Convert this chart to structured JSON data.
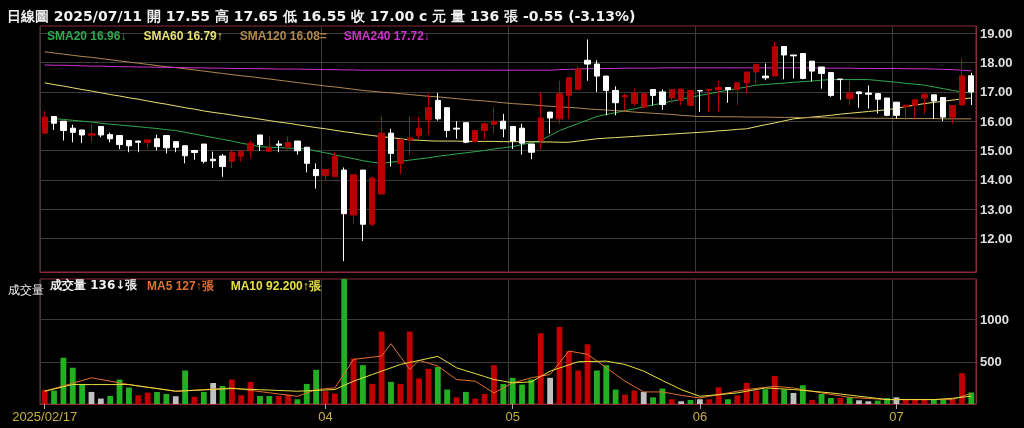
{
  "chart_data": [
    {
      "type": "candlestick",
      "title": "日線圖 2025/07/11 開 17.55 高 17.65 低 16.55 收 17.00 c 元 量 136 張 -0.55 (-3.13%)",
      "categories": [
        "2025/02/17",
        null,
        null,
        null,
        null,
        null,
        null,
        null,
        null,
        null,
        null,
        null,
        null,
        null,
        null,
        null,
        null,
        null,
        null,
        null,
        null,
        null,
        null,
        null,
        null,
        null,
        null,
        null,
        null,
        null,
        "04",
        null,
        null,
        null,
        null,
        null,
        null,
        null,
        null,
        null,
        null,
        null,
        null,
        null,
        null,
        null,
        null,
        null,
        null,
        null,
        "05",
        null,
        null,
        null,
        null,
        null,
        null,
        null,
        null,
        null,
        null,
        null,
        null,
        null,
        null,
        null,
        null,
        null,
        null,
        null,
        "06",
        null,
        null,
        null,
        null,
        null,
        null,
        null,
        null,
        null,
        null,
        null,
        null,
        null,
        null,
        null,
        null,
        null,
        null,
        null,
        null,
        "07",
        null,
        null,
        null,
        null,
        null,
        null,
        null,
        null
      ],
      "ylim": [
        10.85,
        19.25
      ],
      "yticks": [
        {
          "value": 12,
          "label": "12.00"
        },
        {
          "value": 13,
          "label": "13.00"
        },
        {
          "value": 14,
          "label": "14.00"
        },
        {
          "value": 15,
          "label": "15.00"
        },
        {
          "value": 16,
          "label": "16.00"
        },
        {
          "value": 17,
          "label": "17.00"
        },
        {
          "value": 18,
          "label": "18.00"
        },
        {
          "value": 19,
          "label": "19.00"
        }
      ],
      "grid": true,
      "legend": "top left",
      "tick_labels": "y",
      "marker": "none",
      "line_style": "solid",
      "series": [
        {
          "ohlc": [
            [
              15.59,
              16.35,
              15.57,
              16.14
            ],
            [
              16.16,
              16.16,
              15.7,
              15.93
            ],
            [
              16.0,
              16.0,
              15.34,
              15.68
            ],
            [
              15.76,
              15.88,
              15.28,
              15.62
            ],
            [
              15.7,
              15.7,
              15.25,
              15.53
            ],
            [
              15.52,
              15.91,
              15.28,
              15.57
            ],
            [
              15.82,
              15.82,
              15.45,
              15.53
            ],
            [
              15.54,
              15.61,
              15.28,
              15.4
            ],
            [
              15.51,
              15.51,
              15.04,
              15.2
            ],
            [
              15.34,
              15.34,
              14.94,
              15.16
            ],
            [
              15.32,
              15.34,
              14.94,
              15.28
            ],
            [
              15.27,
              15.38,
              15.05,
              15.36
            ],
            [
              15.4,
              15.54,
              15.0,
              15.13
            ],
            [
              15.51,
              15.51,
              14.9,
              15.09
            ],
            [
              15.3,
              15.3,
              14.94,
              15.11
            ],
            [
              15.16,
              15.16,
              14.56,
              14.82
            ],
            [
              15.0,
              15.02,
              14.68,
              14.93
            ],
            [
              15.22,
              15.22,
              14.56,
              14.63
            ],
            [
              14.7,
              14.96,
              14.4,
              14.65
            ],
            [
              14.81,
              14.88,
              14.1,
              14.45
            ],
            [
              14.63,
              15.02,
              14.39,
              14.94
            ],
            [
              14.8,
              14.97,
              14.62,
              14.97
            ],
            [
              14.99,
              15.34,
              14.74,
              15.25
            ],
            [
              15.53,
              15.53,
              14.99,
              15.2
            ],
            [
              14.97,
              15.48,
              14.94,
              15.09
            ],
            [
              15.22,
              15.34,
              14.94,
              15.18
            ],
            [
              15.11,
              15.48,
              15.02,
              15.27
            ],
            [
              15.32,
              15.32,
              14.86,
              14.99
            ],
            [
              15.11,
              15.11,
              14.25,
              14.56
            ],
            [
              14.35,
              14.56,
              13.7,
              14.14
            ],
            [
              14.14,
              14.35,
              13.97,
              14.35
            ],
            [
              14.1,
              14.94,
              14.1,
              14.79
            ],
            [
              14.33,
              14.42,
              11.22,
              12.84
            ],
            [
              12.8,
              14.17,
              12.5,
              14.17
            ],
            [
              14.33,
              14.33,
              11.91,
              12.48
            ],
            [
              12.48,
              14.1,
              12.4,
              14.06
            ],
            [
              13.51,
              16.16,
              13.51,
              15.59
            ],
            [
              15.59,
              15.74,
              14.45,
              14.9
            ],
            [
              14.56,
              15.38,
              14.19,
              15.38
            ],
            [
              15.36,
              16.16,
              14.86,
              15.43
            ],
            [
              15.51,
              16.14,
              15.4,
              15.76
            ],
            [
              16.05,
              16.94,
              15.54,
              16.46
            ],
            [
              16.71,
              16.96,
              16.02,
              16.08
            ],
            [
              16.46,
              16.46,
              15.45,
              15.68
            ],
            [
              15.76,
              16.0,
              15.4,
              15.73
            ],
            [
              15.95,
              15.95,
              15.25,
              15.28
            ],
            [
              15.31,
              15.7,
              15.28,
              15.68
            ],
            [
              15.68,
              15.96,
              15.4,
              15.91
            ],
            [
              15.89,
              16.48,
              15.57,
              16.0
            ],
            [
              16.0,
              16.25,
              15.45,
              15.74
            ],
            [
              15.82,
              15.82,
              15.05,
              15.32
            ],
            [
              15.76,
              15.91,
              14.86,
              15.25
            ],
            [
              15.22,
              15.22,
              14.7,
              14.94
            ],
            [
              15.34,
              16.96,
              15.02,
              16.11
            ],
            [
              16.31,
              16.31,
              15.57,
              16.11
            ],
            [
              16.08,
              17.38,
              15.91,
              16.94
            ],
            [
              16.88,
              17.49,
              16.08,
              17.49
            ],
            [
              17.08,
              17.88,
              17.08,
              17.78
            ],
            [
              18.08,
              18.79,
              17.38,
              17.95
            ],
            [
              17.95,
              18.08,
              17.0,
              17.54
            ],
            [
              17.54,
              17.54,
              16.2,
              17.05
            ],
            [
              17.05,
              17.19,
              16.2,
              16.63
            ],
            [
              16.83,
              16.94,
              16.37,
              16.88
            ],
            [
              16.6,
              17.11,
              16.51,
              16.96
            ],
            [
              16.48,
              16.94,
              16.43,
              16.94
            ],
            [
              17.08,
              17.08,
              16.54,
              16.88
            ],
            [
              17.0,
              17.08,
              16.39,
              16.57
            ],
            [
              16.8,
              17.08,
              16.62,
              17.08
            ],
            [
              16.71,
              17.1,
              16.54,
              17.1
            ],
            [
              16.54,
              17.05,
              16.51,
              17.05
            ],
            [
              17.05,
              17.05,
              16.32,
              17.03
            ],
            [
              17.05,
              17.09,
              16.32,
              17.09
            ],
            [
              17.08,
              17.38,
              16.32,
              17.15
            ],
            [
              17.15,
              17.15,
              16.63,
              17.08
            ],
            [
              17.08,
              17.31,
              16.54,
              17.31
            ],
            [
              17.31,
              17.68,
              16.94,
              17.68
            ],
            [
              17.68,
              17.94,
              17.25,
              17.94
            ],
            [
              17.54,
              17.97,
              17.4,
              17.48
            ],
            [
              17.54,
              18.69,
              17.54,
              18.54
            ],
            [
              18.55,
              18.55,
              17.43,
              18.26
            ],
            [
              18.26,
              18.26,
              17.46,
              18.23
            ],
            [
              18.31,
              18.31,
              17.43,
              17.46
            ],
            [
              18.05,
              18.05,
              17.36,
              17.71
            ],
            [
              17.85,
              17.85,
              17.11,
              17.63
            ],
            [
              17.66,
              17.66,
              16.83,
              16.88
            ],
            [
              17.44,
              17.44,
              16.73,
              17.42
            ],
            [
              16.77,
              17.38,
              16.54,
              16.96
            ],
            [
              17.0,
              17.0,
              16.46,
              16.94
            ],
            [
              16.96,
              17.22,
              16.43,
              16.92
            ],
            [
              16.94,
              16.94,
              16.26,
              16.75
            ],
            [
              16.79,
              16.79,
              16.17,
              16.2
            ],
            [
              16.65,
              16.65,
              16.08,
              16.2
            ],
            [
              16.49,
              16.54,
              16.03,
              16.54
            ],
            [
              16.54,
              16.73,
              16.08,
              16.73
            ],
            [
              16.79,
              16.99,
              16.25,
              16.92
            ],
            [
              16.9,
              16.9,
              16.08,
              16.69
            ],
            [
              16.81,
              16.81,
              16.0,
              16.14
            ],
            [
              16.14,
              16.54,
              15.91,
              16.54
            ],
            [
              16.55,
              18.15,
              16.55,
              17.55
            ],
            [
              17.55,
              17.65,
              16.55,
              17.0
            ]
          ],
          "colors": [
            "#b40000",
            "#ffffff",
            "#ffffff",
            "#ffffff",
            "#ffffff",
            "#b40000",
            "#ffffff",
            "#ffffff",
            "#ffffff",
            "#ffffff",
            "#ffffff",
            "#b40000",
            "#ffffff",
            "#ffffff",
            "#ffffff",
            "#ffffff",
            "#ffffff",
            "#ffffff",
            "#ffffff",
            "#ffffff",
            "#b40000",
            "#b40000",
            "#b40000",
            "#ffffff",
            "#b40000",
            "#ffffff",
            "#b40000",
            "#ffffff",
            "#ffffff",
            "#ffffff",
            "#b40000",
            "#b40000",
            "#ffffff",
            "#b40000",
            "#ffffff",
            "#b40000",
            "#b40000",
            "#ffffff",
            "#b40000",
            "#b40000",
            "#b40000",
            "#b40000",
            "#ffffff",
            "#ffffff",
            "#ffffff",
            "#ffffff",
            "#b40000",
            "#b40000",
            "#b40000",
            "#ffffff",
            "#ffffff",
            "#ffffff",
            "#ffffff",
            "#b40000",
            "#ffffff",
            "#b40000",
            "#b40000",
            "#b40000",
            "#ffffff",
            "#ffffff",
            "#ffffff",
            "#ffffff",
            "#b40000",
            "#b40000",
            "#b40000",
            "#ffffff",
            "#ffffff",
            "#b40000",
            "#b40000",
            "#b40000",
            "#ffffff",
            "#b40000",
            "#b40000",
            "#ffffff",
            "#b40000",
            "#b40000",
            "#b40000",
            "#ffffff",
            "#b40000",
            "#ffffff",
            "#ffffff",
            "#ffffff",
            "#ffffff",
            "#ffffff",
            "#ffffff",
            "#ffffff",
            "#b40000",
            "#ffffff",
            "#ffffff",
            "#ffffff",
            "#ffffff",
            "#ffffff",
            "#b40000",
            "#b40000",
            "#b40000",
            "#ffffff",
            "#ffffff",
            "#b40000",
            "#b40000",
            "#ffffff"
          ]
        },
        {
          "type": "line",
          "name": "SMA20 16.96↓",
          "color": "#2fa84f",
          "values": [
            null,
            16.09,
            16.06,
            16.03,
            16.0,
            15.97,
            15.93,
            15.9,
            15.87,
            15.84,
            15.81,
            15.78,
            15.75,
            15.71,
            15.68,
            15.62,
            15.56,
            15.5,
            15.44,
            15.38,
            15.32,
            15.25,
            15.19,
            15.13,
            15.11,
            15.1,
            15.08,
            15.07,
            15.05,
            14.98,
            14.92,
            14.85,
            14.78,
            14.72,
            14.65,
            14.6,
            14.56,
            14.6,
            14.63,
            14.67,
            14.71,
            14.75,
            14.8,
            14.84,
            14.88,
            14.92,
            14.96,
            15.0,
            15.05,
            15.09,
            15.13,
            15.2,
            15.27,
            15.34,
            15.51,
            15.68,
            15.8,
            15.92,
            16.04,
            16.16,
            16.23,
            16.29,
            16.36,
            16.42,
            16.49,
            16.55,
            16.62,
            16.68,
            16.75,
            16.81,
            16.88,
            16.94,
            17.0,
            17.06,
            17.11,
            17.17,
            17.23,
            17.25,
            17.28,
            17.3,
            17.33,
            17.35,
            17.37,
            17.4,
            17.42,
            17.42,
            17.42,
            17.42,
            17.42,
            17.39,
            17.36,
            17.33,
            17.29,
            17.26,
            17.23,
            17.17,
            17.11,
            17.05,
            17.0,
            16.96
          ]
        },
        {
          "type": "line",
          "name": "SMA60 16.79↑",
          "color": "#e8e070",
          "values": [
            17.31,
            17.25,
            17.2,
            17.14,
            17.08,
            17.03,
            16.97,
            16.91,
            16.86,
            16.8,
            16.75,
            16.69,
            16.63,
            16.58,
            16.52,
            16.46,
            16.41,
            16.35,
            16.3,
            16.26,
            16.21,
            16.16,
            16.12,
            16.07,
            16.02,
            15.97,
            15.93,
            15.88,
            15.83,
            15.78,
            15.74,
            15.69,
            15.64,
            15.6,
            15.55,
            15.51,
            15.47,
            15.44,
            15.4,
            15.36,
            15.35,
            15.33,
            15.32,
            15.32,
            15.32,
            15.31,
            15.31,
            15.31,
            15.31,
            15.3,
            15.3,
            15.3,
            15.3,
            15.29,
            15.29,
            15.28,
            15.28,
            15.32,
            15.36,
            15.4,
            15.42,
            15.44,
            15.46,
            15.48,
            15.5,
            15.52,
            15.54,
            15.56,
            15.58,
            15.6,
            15.62,
            15.64,
            15.67,
            15.69,
            15.72,
            15.74,
            15.81,
            15.88,
            15.94,
            16.01,
            16.08,
            16.11,
            16.14,
            16.17,
            16.2,
            16.24,
            16.27,
            16.3,
            16.33,
            16.36,
            16.39,
            16.44,
            16.5,
            16.55,
            16.6,
            16.64,
            16.68,
            16.72,
            16.76,
            16.79
          ]
        },
        {
          "type": "line",
          "name": "SMA120 16.08=",
          "color": "#b08850",
          "values": [
            18.37,
            18.33,
            18.29,
            18.25,
            18.21,
            18.18,
            18.14,
            18.1,
            18.06,
            18.02,
            17.98,
            17.94,
            17.9,
            17.86,
            17.83,
            17.79,
            17.75,
            17.71,
            17.67,
            17.63,
            17.59,
            17.55,
            17.52,
            17.48,
            17.44,
            17.4,
            17.36,
            17.32,
            17.28,
            17.24,
            17.2,
            17.17,
            17.13,
            17.09,
            17.05,
            17.02,
            16.99,
            16.97,
            16.94,
            16.91,
            16.88,
            16.85,
            16.83,
            16.8,
            16.77,
            16.74,
            16.71,
            16.69,
            16.66,
            16.63,
            16.6,
            16.58,
            16.56,
            16.53,
            16.51,
            16.49,
            16.47,
            16.45,
            16.42,
            16.4,
            16.38,
            16.36,
            16.34,
            16.31,
            16.29,
            16.27,
            16.25,
            16.23,
            16.2,
            16.18,
            16.16,
            16.16,
            16.15,
            16.15,
            16.15,
            16.14,
            16.14,
            16.14,
            16.13,
            16.13,
            16.13,
            16.12,
            16.12,
            16.12,
            16.11,
            16.11,
            16.11,
            16.1,
            16.1,
            16.1,
            16.1,
            16.09,
            16.09,
            16.09,
            16.09,
            16.09,
            16.08,
            16.08,
            16.08,
            16.08
          ]
        },
        {
          "type": "line",
          "name": "SMA240 17.72↓",
          "color": "#cc33cc",
          "values": [
            17.92,
            17.91,
            17.91,
            17.9,
            17.89,
            17.88,
            17.88,
            17.87,
            17.86,
            17.86,
            17.85,
            17.85,
            17.84,
            17.84,
            17.83,
            17.83,
            17.82,
            17.82,
            17.81,
            17.81,
            17.8,
            17.8,
            17.8,
            17.79,
            17.79,
            17.78,
            17.78,
            17.78,
            17.77,
            17.77,
            17.76,
            17.76,
            17.75,
            17.75,
            17.74,
            17.74,
            17.74,
            17.74,
            17.74,
            17.74,
            17.74,
            17.74,
            17.74,
            17.74,
            17.74,
            17.74,
            17.74,
            17.74,
            17.74,
            17.74,
            17.74,
            17.74,
            17.74,
            17.74,
            17.74,
            17.76,
            17.77,
            17.78,
            17.79,
            17.8,
            17.8,
            17.8,
            17.81,
            17.81,
            17.81,
            17.81,
            17.82,
            17.82,
            17.82,
            17.82,
            17.82,
            17.82,
            17.82,
            17.82,
            17.82,
            17.82,
            17.82,
            17.82,
            17.82,
            17.82,
            17.82,
            17.82,
            17.82,
            17.81,
            17.81,
            17.81,
            17.81,
            17.8,
            17.8,
            17.8,
            17.8,
            17.8,
            17.79,
            17.79,
            17.79,
            17.78,
            17.77,
            17.76,
            17.74,
            17.72
          ]
        }
      ]
    },
    {
      "type": "bar",
      "title": "成交量",
      "annotations": [
        "成交量 136↓張"
      ],
      "categories": [
        "2025/02/17",
        null,
        null,
        null,
        null,
        null,
        null,
        null,
        null,
        null,
        null,
        null,
        null,
        null,
        null,
        null,
        null,
        null,
        null,
        null,
        null,
        null,
        null,
        null,
        null,
        null,
        null,
        null,
        null,
        null,
        "04",
        null,
        null,
        null,
        null,
        null,
        null,
        null,
        null,
        null,
        null,
        null,
        null,
        null,
        null,
        null,
        null,
        null,
        null,
        null,
        "05",
        null,
        null,
        null,
        null,
        null,
        null,
        null,
        null,
        null,
        null,
        null,
        null,
        null,
        null,
        null,
        null,
        null,
        null,
        null,
        "06",
        null,
        null,
        null,
        null,
        null,
        null,
        null,
        null,
        null,
        null,
        null,
        null,
        null,
        null,
        null,
        null,
        null,
        null,
        null,
        null,
        "07",
        null,
        null,
        null,
        null,
        null,
        null,
        null,
        null
      ],
      "ylim": [
        0,
        1480
      ],
      "yticks": [
        500,
        1000
      ],
      "grid": true,
      "legend": "top left",
      "marker": "none",
      "line_style": "solid",
      "series": [
        {
          "values": [
            167,
            159,
            548,
            429,
            238,
            143,
            64,
            95,
            290,
            195,
            103,
            135,
            143,
            119,
            91,
            397,
            87,
            143,
            250,
            214,
            290,
            103,
            262,
            95,
            95,
            95,
            111,
            56,
            238,
            405,
            151,
            123,
            1480,
            540,
            460,
            238,
            858,
            262,
            238,
            858,
            302,
            417,
            437,
            171,
            79,
            143,
            64,
            119,
            460,
            238,
            310,
            230,
            290,
            838,
            310,
            913,
            627,
            397,
            707,
            397,
            460,
            171,
            111,
            159,
            143,
            79,
            183,
            56,
            32,
            48,
            56,
            56,
            198,
            56,
            103,
            250,
            159,
            175,
            333,
            171,
            131,
            222,
            48,
            119,
            71,
            71,
            79,
            44,
            32,
            40,
            71,
            79,
            60,
            60,
            60,
            56,
            56,
            52,
            365,
            136
          ],
          "colors": [
            "#c00000",
            "#22b022",
            "#22b022",
            "#22b022",
            "#22b022",
            "#c0c0c0",
            "#c0c0c0",
            "#22b022",
            "#22b022",
            "#22b022",
            "#c00000",
            "#c00000",
            "#22b022",
            "#22b022",
            "#c0c0c0",
            "#22b022",
            "#c00000",
            "#22b022",
            "#c0c0c0",
            "#22b022",
            "#c00000",
            "#c00000",
            "#c00000",
            "#22b022",
            "#22b022",
            "#c00000",
            "#c00000",
            "#22b022",
            "#22b022",
            "#22b022",
            "#c00000",
            "#c00000",
            "#22b022",
            "#c00000",
            "#22b022",
            "#c00000",
            "#c00000",
            "#22b022",
            "#c00000",
            "#c00000",
            "#c00000",
            "#c00000",
            "#22b022",
            "#22b022",
            "#c00000",
            "#22b022",
            "#c00000",
            "#c00000",
            "#c00000",
            "#22b022",
            "#22b022",
            "#22b022",
            "#22b022",
            "#c00000",
            "#c0c0c0",
            "#c00000",
            "#c00000",
            "#c00000",
            "#c00000",
            "#22b022",
            "#22b022",
            "#22b022",
            "#c00000",
            "#c00000",
            "#c0c0c0",
            "#22b022",
            "#22b022",
            "#c00000",
            "#c0c0c0",
            "#22b022",
            "#c0c0c0",
            "#c00000",
            "#c00000",
            "#22b022",
            "#c00000",
            "#c00000",
            "#c00000",
            "#22b022",
            "#c00000",
            "#22b022",
            "#c0c0c0",
            "#22b022",
            "#c00000",
            "#22b022",
            "#22b022",
            "#c00000",
            "#22b022",
            "#c0c0c0",
            "#c0c0c0",
            "#22b022",
            "#22b022",
            "#c0c0c0",
            "#c00000",
            "#c00000",
            "#c00000",
            "#22b022",
            "#22b022",
            "#c00000",
            "#c00000",
            "#22b022"
          ]
        },
        {
          "type": "line",
          "name": "MA5 127↑張",
          "color": "#e07030",
          "values": [
            151,
            183,
            215,
            246,
            278,
            310,
            290,
            270,
            250,
            230,
            214,
            198,
            183,
            167,
            151,
            157,
            164,
            170,
            177,
            183,
            190,
            176,
            162,
            147,
            133,
            119,
            105,
            91,
            131,
            171,
            181,
            190,
            359,
            528,
            541,
            555,
            568,
            715,
            562,
            409,
            516,
            483,
            449,
            370,
            290,
            280,
            270,
            201,
            131,
            191,
            250,
            280,
            310,
            330,
            349,
            488,
            627,
            608,
            588,
            509,
            429,
            350,
            270,
            207,
            143,
            143,
            143,
            123,
            103,
            87,
            71,
            91,
            111,
            131,
            151,
            171,
            184,
            197,
            210,
            200,
            190,
            170,
            151,
            131,
            114,
            96,
            79,
            72,
            66,
            59,
            52,
            52,
            52,
            52,
            52,
            52,
            52,
            52,
            90,
            127
          ]
        },
        {
          "type": "line",
          "name": "MA10 92.200↑張",
          "color": "#e8e040",
          "values": [
            151,
            177,
            204,
            230,
            230,
            230,
            230,
            230,
            230,
            230,
            214,
            198,
            183,
            167,
            151,
            156,
            162,
            167,
            172,
            178,
            183,
            178,
            174,
            169,
            165,
            160,
            156,
            151,
            156,
            161,
            166,
            171,
            221,
            270,
            310,
            349,
            389,
            428,
            468,
            492,
            516,
            540,
            564,
            497,
            429,
            394,
            360,
            325,
            290,
            270,
            250,
            256,
            262,
            326,
            389,
            426,
            463,
            500,
            503,
            505,
            508,
            488,
            468,
            429,
            389,
            334,
            278,
            225,
            171,
            131,
            91,
            101,
            111,
            121,
            131,
            151,
            171,
            190,
            184,
            177,
            171,
            161,
            151,
            141,
            131,
            118,
            105,
            92,
            79,
            66,
            52,
            52,
            52,
            52,
            52,
            52,
            60,
            68,
            80,
            92.2
          ]
        }
      ]
    }
  ]
}
